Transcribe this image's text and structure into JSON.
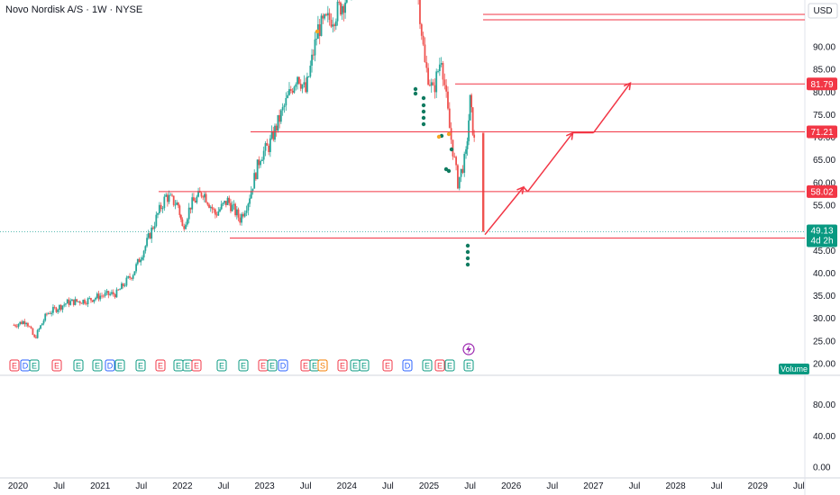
{
  "header": {
    "title": "Novo Nordisk A/S · 1W · NYSE",
    "currency": "USD"
  },
  "colors": {
    "up": "#26a69a",
    "down": "#ef5350",
    "line": "#f23645",
    "arrow": "#f23645",
    "earnings_bg": "#e8eaed"
  },
  "price_axis": {
    "ticks": [
      "20.00",
      "25.00",
      "30.00",
      "35.00",
      "40.00",
      "45.00",
      "50.00",
      "55.00",
      "60.00",
      "65.00",
      "70.00",
      "75.00",
      "80.00",
      "85.00",
      "90.00"
    ]
  },
  "volume_axis": {
    "ticks": [
      "0.00",
      "40.00",
      "80.00"
    ]
  },
  "time_axis": {
    "ticks": [
      "2020",
      "Jul",
      "2021",
      "Jul",
      "2022",
      "Jul",
      "2023",
      "Jul",
      "2024",
      "Jul",
      "2025",
      "Jul",
      "2026",
      "Jul",
      "2027",
      "Jul",
      "2028",
      "Jul",
      "2029",
      "Jul"
    ]
  },
  "levels": [
    {
      "label": "81.79",
      "value": 81.79
    },
    {
      "label": "71.21",
      "value": 71.21
    },
    {
      "label": "58.02",
      "value": 58.02
    },
    {
      "label": "47.73",
      "value": 47.73
    }
  ],
  "current_price": {
    "price": "49.13",
    "countdown": "4d 2h"
  },
  "volume_label": "Volume",
  "earnings_markers": [
    "E",
    "D",
    "E",
    "E",
    "E",
    "E",
    "D",
    "E",
    "E",
    "E",
    "E",
    "E",
    "E",
    "E",
    "E",
    "E",
    "E",
    "D",
    "E",
    "E",
    "S",
    "E",
    "E",
    "E",
    "E",
    "D",
    "E",
    "E",
    "E",
    "E",
    "E",
    "E",
    "D",
    "E",
    "E"
  ],
  "chart_data": {
    "type": "candlestick",
    "title": "Novo Nordisk A/S · 1W · NYSE",
    "currency": "USD",
    "ylim": [
      20,
      95
    ],
    "x_range": [
      "2019-12",
      "2029-12"
    ],
    "price_path": [
      {
        "t": 2019.95,
        "v": 28.5
      },
      {
        "t": 2020.1,
        "v": 29.5
      },
      {
        "t": 2020.2,
        "v": 25.5
      },
      {
        "t": 2020.35,
        "v": 31
      },
      {
        "t": 2020.6,
        "v": 33.5
      },
      {
        "t": 2020.85,
        "v": 34
      },
      {
        "t": 2021.0,
        "v": 35
      },
      {
        "t": 2021.2,
        "v": 35.5
      },
      {
        "t": 2021.4,
        "v": 40
      },
      {
        "t": 2021.55,
        "v": 46
      },
      {
        "t": 2021.7,
        "v": 53
      },
      {
        "t": 2021.8,
        "v": 57
      },
      {
        "t": 2021.95,
        "v": 55
      },
      {
        "t": 2022.0,
        "v": 50
      },
      {
        "t": 2022.1,
        "v": 55
      },
      {
        "t": 2022.25,
        "v": 58
      },
      {
        "t": 2022.4,
        "v": 53
      },
      {
        "t": 2022.55,
        "v": 56
      },
      {
        "t": 2022.7,
        "v": 52
      },
      {
        "t": 2022.8,
        "v": 56
      },
      {
        "t": 2022.95,
        "v": 66
      },
      {
        "t": 2023.05,
        "v": 68
      },
      {
        "t": 2023.2,
        "v": 75
      },
      {
        "t": 2023.4,
        "v": 84
      },
      {
        "t": 2023.5,
        "v": 80
      },
      {
        "t": 2023.65,
        "v": 94
      },
      {
        "t": 2023.85,
        "v": 97
      },
      {
        "t": 2024.0,
        "v": 101
      },
      {
        "t": 2024.3,
        "v": 120
      },
      {
        "t": 2024.5,
        "v": 130
      },
      {
        "t": 2024.85,
        "v": 105
      },
      {
        "t": 2024.95,
        "v": 86
      },
      {
        "t": 2025.05,
        "v": 80
      },
      {
        "t": 2025.15,
        "v": 88
      },
      {
        "t": 2025.25,
        "v": 72
      },
      {
        "t": 2025.35,
        "v": 60
      },
      {
        "t": 2025.45,
        "v": 66
      },
      {
        "t": 2025.5,
        "v": 78
      },
      {
        "t": 2025.55,
        "v": 69
      },
      {
        "t": 2025.62,
        "v": 71
      },
      {
        "t": 2025.66,
        "v": 49.13
      }
    ],
    "current_price": 49.13,
    "horizontal_levels": [
      81.79,
      71.21,
      58.02,
      47.73
    ],
    "projection": [
      {
        "t": 2025.68,
        "v": 48.5
      },
      {
        "t": 2026.15,
        "v": 59
      },
      {
        "t": 2026.2,
        "v": 58
      },
      {
        "t": 2026.75,
        "v": 71
      },
      {
        "t": 2027.0,
        "v": 71
      },
      {
        "t": 2027.45,
        "v": 82
      }
    ]
  }
}
